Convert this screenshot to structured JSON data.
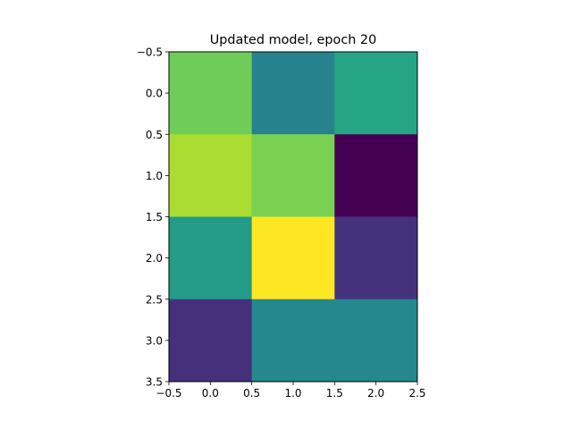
{
  "chart_data": {
    "type": "heatmap",
    "title": "Updated model, epoch 20",
    "xlabel": "",
    "ylabel": "",
    "xlim": [
      -0.5,
      2.5
    ],
    "ylim": [
      3.5,
      -0.5
    ],
    "x_ticks": [
      "−0.5",
      "0.0",
      "0.5",
      "1.0",
      "1.5",
      "2.0",
      "2.5"
    ],
    "y_ticks": [
      "−0.5",
      "0.0",
      "0.5",
      "1.0",
      "1.5",
      "2.0",
      "2.5",
      "3.0",
      "3.5"
    ],
    "colormap": "viridis",
    "value_range": [
      0,
      1
    ],
    "grid": false,
    "legend": "none",
    "rows": 4,
    "cols": 3,
    "values": [
      [
        0.78,
        0.45,
        0.6
      ],
      [
        0.88,
        0.8,
        0.0
      ],
      [
        0.55,
        1.0,
        0.15
      ],
      [
        0.14,
        0.47,
        0.47
      ]
    ]
  }
}
